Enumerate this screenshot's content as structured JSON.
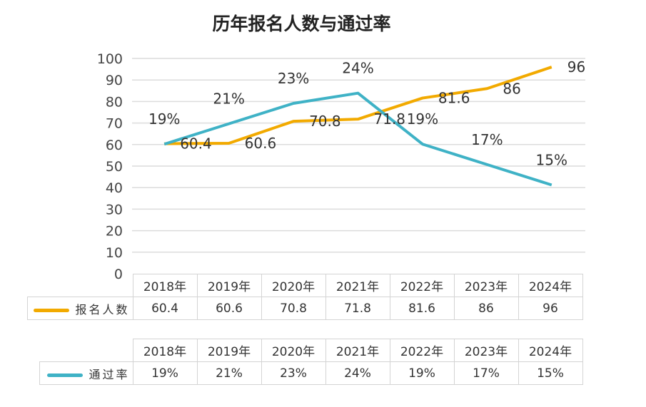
{
  "chart_data": {
    "type": "line",
    "title": "历年报名人数与通过率",
    "categories": [
      "2018年",
      "2019年",
      "2020年",
      "2021年",
      "2022年",
      "2023年",
      "2024年"
    ],
    "ylim": [
      0,
      100
    ],
    "yticks": [
      0,
      10,
      20,
      30,
      40,
      50,
      60,
      70,
      80,
      90,
      100
    ],
    "y2lim_hidden": [
      6.3,
      27.4
    ],
    "grid": true,
    "legend": "bottom data table",
    "series": [
      {
        "name": "报名人数",
        "values": [
          60.4,
          60.6,
          70.8,
          71.8,
          81.6,
          86,
          96
        ],
        "labels": [
          "60.4",
          "60.6",
          "70.8",
          "71.8",
          "81.6",
          "86",
          "96"
        ],
        "color": "#f2aa00",
        "axis": "primary"
      },
      {
        "name": "通过率",
        "values": [
          19,
          21,
          23,
          24,
          19,
          17,
          15
        ],
        "labels": [
          "19%",
          "21%",
          "23%",
          "24%",
          "19%",
          "17%",
          "15%"
        ],
        "color": "#3fb2c6",
        "axis": "secondary"
      }
    ]
  }
}
